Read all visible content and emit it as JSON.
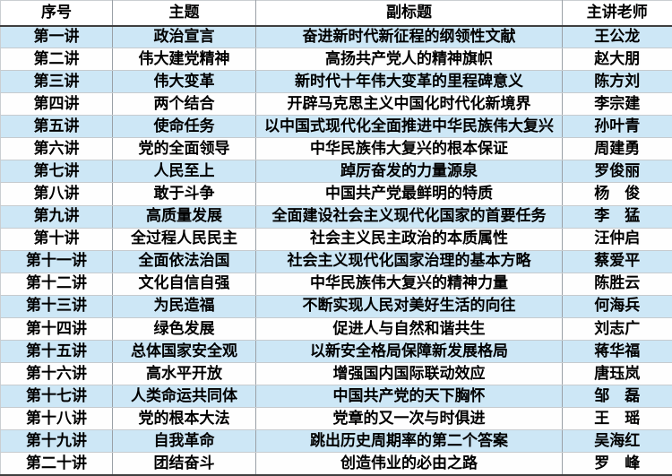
{
  "table": {
    "columns": [
      {
        "key": "no",
        "label": "序号"
      },
      {
        "key": "theme",
        "label": "主题"
      },
      {
        "key": "subtitle",
        "label": "副标题"
      },
      {
        "key": "lecturer",
        "label": "主讲老师"
      }
    ],
    "rows": [
      {
        "no": "第一讲",
        "theme": "政治宣言",
        "subtitle": "奋进新时代新征程的纲领性文献",
        "lecturer": "王公龙"
      },
      {
        "no": "第二讲",
        "theme": "伟大建党精神",
        "subtitle": "高扬共产党人的精神旗帜",
        "lecturer": "赵大朋"
      },
      {
        "no": "第三讲",
        "theme": "伟大变革",
        "subtitle": "新时代十年伟大变革的里程碑意义",
        "lecturer": "陈方刘"
      },
      {
        "no": "第四讲",
        "theme": "两个结合",
        "subtitle": "开辟马克思主义中国化时代化新境界",
        "lecturer": "李宗建"
      },
      {
        "no": "第五讲",
        "theme": "使命任务",
        "subtitle": "以中国式现代化全面推进中华民族伟大复兴",
        "lecturer": "孙叶青"
      },
      {
        "no": "第六讲",
        "theme": "党的全面领导",
        "subtitle": "中华民族伟大复兴的根本保证",
        "lecturer": "周建勇"
      },
      {
        "no": "第七讲",
        "theme": "人民至上",
        "subtitle": "踔厉奋发的力量源泉",
        "lecturer": "罗俊丽"
      },
      {
        "no": "第八讲",
        "theme": "敢于斗争",
        "subtitle": "中国共产党最鲜明的特质",
        "lecturer": "杨　俊"
      },
      {
        "no": "第九讲",
        "theme": "高质量发展",
        "subtitle": "全面建设社会主义现代化国家的首要任务",
        "lecturer": "李　猛"
      },
      {
        "no": "第十讲",
        "theme": "全过程人民民主",
        "subtitle": "社会主义民主政治的本质属性",
        "lecturer": "汪仲启"
      },
      {
        "no": "第十一讲",
        "theme": "全面依法治国",
        "subtitle": "社会主义现代化国家治理的基本方略",
        "lecturer": "蔡爱平"
      },
      {
        "no": "第十二讲",
        "theme": "文化自信自强",
        "subtitle": "中华民族伟大复兴的精神力量",
        "lecturer": "陈胜云"
      },
      {
        "no": "第十三讲",
        "theme": "为民造福",
        "subtitle": "不断实现人民对美好生活的向往",
        "lecturer": "何海兵"
      },
      {
        "no": "第十四讲",
        "theme": "绿色发展",
        "subtitle": "促进人与自然和谐共生",
        "lecturer": "刘志广"
      },
      {
        "no": "第十五讲",
        "theme": "总体国家安全观",
        "subtitle": "以新安全格局保障新发展格局",
        "lecturer": "蒋华福"
      },
      {
        "no": "第十六讲",
        "theme": "高水平开放",
        "subtitle": "增强国内国际联动效应",
        "lecturer": "唐珏岚"
      },
      {
        "no": "第十七讲",
        "theme": "人类命运共同体",
        "subtitle": "中国共产党的天下胸怀",
        "lecturer": "邹　磊"
      },
      {
        "no": "第十八讲",
        "theme": "党的根本大法",
        "subtitle": "党章的又一次与时俱进",
        "lecturer": "王　瑶"
      },
      {
        "no": "第十九讲",
        "theme": "自我革命",
        "subtitle": "跳出历史周期率的第二个答案",
        "lecturer": "吴海红"
      },
      {
        "no": "第二十讲",
        "theme": "团结奋斗",
        "subtitle": "创造伟业的必由之路",
        "lecturer": "罗　峰"
      }
    ]
  },
  "colors": {
    "band_blue": "#cde7f6",
    "row_white": "#fefefe",
    "grid_vertical": "#9aa0a6",
    "grid_horizontal": "#c6cbcf",
    "outer_dark": "#3f3f3f",
    "outer_light": "#caced2",
    "text": "#000000"
  }
}
